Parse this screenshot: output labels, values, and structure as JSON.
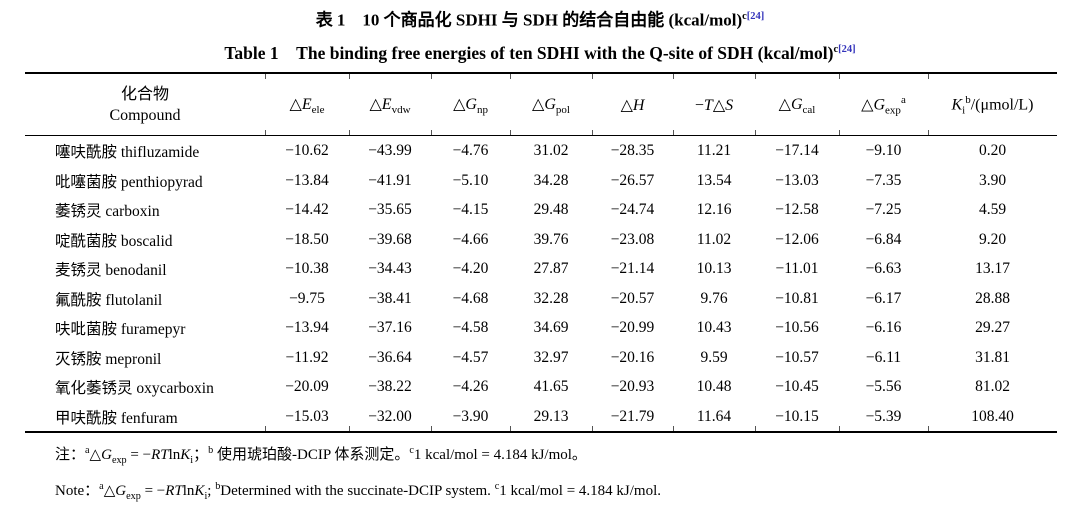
{
  "colors": {
    "link_blue": "#3333bb",
    "text": "#000000",
    "background": "#ffffff"
  },
  "titles": {
    "zh_text": "表 1　10 个商品化 SDHI 与 SDH 的结合自由能 (kcal/mol)",
    "zh_footnote_mark": "c",
    "zh_citation": "[24]",
    "en_text": "Table 1　The binding free energies of ten SDHI with the Q-site of SDH (kcal/mol)",
    "en_footnote_mark": "c",
    "en_citation": "[24]"
  },
  "table": {
    "compound_header": {
      "zh": "化合物",
      "en": "Compound"
    },
    "columns": [
      {
        "name": "dE-ele",
        "rich": [
          {
            "t": "△"
          },
          {
            "t": "E",
            "i": true
          },
          {
            "t": "ele",
            "sub": true
          }
        ]
      },
      {
        "name": "dE-vdw",
        "rich": [
          {
            "t": "△"
          },
          {
            "t": "E",
            "i": true
          },
          {
            "t": "vdw",
            "sub": true
          }
        ]
      },
      {
        "name": "dG-np",
        "rich": [
          {
            "t": "△"
          },
          {
            "t": "G",
            "i": true
          },
          {
            "t": "np",
            "sub": true
          }
        ]
      },
      {
        "name": "dG-pol",
        "rich": [
          {
            "t": "△"
          },
          {
            "t": "G",
            "i": true
          },
          {
            "t": "pol",
            "sub": true
          }
        ]
      },
      {
        "name": "dH",
        "rich": [
          {
            "t": "△"
          },
          {
            "t": "H",
            "i": true
          }
        ]
      },
      {
        "name": "minus-TdS",
        "rich": [
          {
            "t": "−"
          },
          {
            "t": "T",
            "i": true
          },
          {
            "t": "△"
          },
          {
            "t": "S",
            "i": true
          }
        ]
      },
      {
        "name": "dG-cal",
        "rich": [
          {
            "t": "△"
          },
          {
            "t": "G",
            "i": true
          },
          {
            "t": "cal",
            "sub": true
          }
        ]
      },
      {
        "name": "dG-exp",
        "rich": [
          {
            "t": "△"
          },
          {
            "t": "G",
            "i": true
          },
          {
            "t": "exp",
            "sub": true
          },
          {
            "t": "a",
            "sup": true
          }
        ]
      },
      {
        "name": "Ki",
        "rich": [
          {
            "t": "K",
            "i": true
          },
          {
            "t": "i",
            "sub": true
          },
          {
            "t": "b",
            "sup": true
          },
          {
            "t": "/(μmol/L)"
          }
        ]
      }
    ],
    "rows": [
      {
        "zh": "噻呋酰胺",
        "en": "thifluzamide",
        "values": [
          "−10.62",
          "−43.99",
          "−4.76",
          "31.02",
          "−28.35",
          "11.21",
          "−17.14",
          "−9.10",
          "0.20"
        ]
      },
      {
        "zh": "吡噻菌胺",
        "en": "penthiopyrad",
        "values": [
          "−13.84",
          "−41.91",
          "−5.10",
          "34.28",
          "−26.57",
          "13.54",
          "−13.03",
          "−7.35",
          "3.90"
        ]
      },
      {
        "zh": "萎锈灵",
        "en": "carboxin",
        "values": [
          "−14.42",
          "−35.65",
          "−4.15",
          "29.48",
          "−24.74",
          "12.16",
          "−12.58",
          "−7.25",
          "4.59"
        ]
      },
      {
        "zh": "啶酰菌胺",
        "en": "boscalid",
        "values": [
          "−18.50",
          "−39.68",
          "−4.66",
          "39.76",
          "−23.08",
          "11.02",
          "−12.06",
          "−6.84",
          "9.20"
        ]
      },
      {
        "zh": "麦锈灵",
        "en": "benodanil",
        "values": [
          "−10.38",
          "−34.43",
          "−4.20",
          "27.87",
          "−21.14",
          "10.13",
          "−11.01",
          "−6.63",
          "13.17"
        ]
      },
      {
        "zh": "氟酰胺",
        "en": "flutolanil",
        "values": [
          "−9.75",
          "−38.41",
          "−4.68",
          "32.28",
          "−20.57",
          "9.76",
          "−10.81",
          "−6.17",
          "28.88"
        ]
      },
      {
        "zh": "呋吡菌胺",
        "en": "furamepyr",
        "values": [
          "−13.94",
          "−37.16",
          "−4.58",
          "34.69",
          "−20.99",
          "10.43",
          "−10.56",
          "−6.16",
          "29.27"
        ]
      },
      {
        "zh": "灭锈胺",
        "en": "mepronil",
        "values": [
          "−11.92",
          "−36.64",
          "−4.57",
          "32.97",
          "−20.16",
          "9.59",
          "−10.57",
          "−6.11",
          "31.81"
        ]
      },
      {
        "zh": "氧化萎锈灵",
        "en": "oxycarboxin",
        "values": [
          "−20.09",
          "−38.22",
          "−4.26",
          "41.65",
          "−20.93",
          "10.48",
          "−10.45",
          "−5.56",
          "81.02"
        ]
      },
      {
        "zh": "甲呋酰胺",
        "en": "fenfuram",
        "values": [
          "−15.03",
          "−32.00",
          "−3.90",
          "29.13",
          "−21.79",
          "11.64",
          "−10.15",
          "−5.39",
          "108.40"
        ]
      }
    ]
  },
  "notes": {
    "zh_rich": [
      {
        "t": "注："
      },
      {
        "t": "a",
        "sup": true
      },
      {
        "t": "△"
      },
      {
        "t": "G",
        "i": true
      },
      {
        "t": "exp",
        "sub": true
      },
      {
        "t": " = −"
      },
      {
        "t": "RT",
        "i": true
      },
      {
        "t": "ln"
      },
      {
        "t": "K",
        "i": true
      },
      {
        "t": "i",
        "sub": true
      },
      {
        "t": "；"
      },
      {
        "t": "b",
        "sup": true
      },
      {
        "t": " 使用琥珀酸-DCIP 体系测定。"
      },
      {
        "t": "c",
        "sup": true
      },
      {
        "t": "1 kcal/mol = 4.184 kJ/mol。"
      }
    ],
    "en_rich": [
      {
        "t": "Note："
      },
      {
        "t": "a",
        "sup": true
      },
      {
        "t": "△"
      },
      {
        "t": "G",
        "i": true
      },
      {
        "t": "exp",
        "sub": true
      },
      {
        "t": " = −"
      },
      {
        "t": "RT",
        "i": true
      },
      {
        "t": "ln"
      },
      {
        "t": "K",
        "i": true
      },
      {
        "t": "i",
        "sub": true
      },
      {
        "t": "; "
      },
      {
        "t": "b",
        "sup": true
      },
      {
        "t": "Determined with the succinate-DCIP system. "
      },
      {
        "t": "c",
        "sup": true
      },
      {
        "t": "1 kcal/mol = 4.184 kJ/mol."
      }
    ]
  }
}
